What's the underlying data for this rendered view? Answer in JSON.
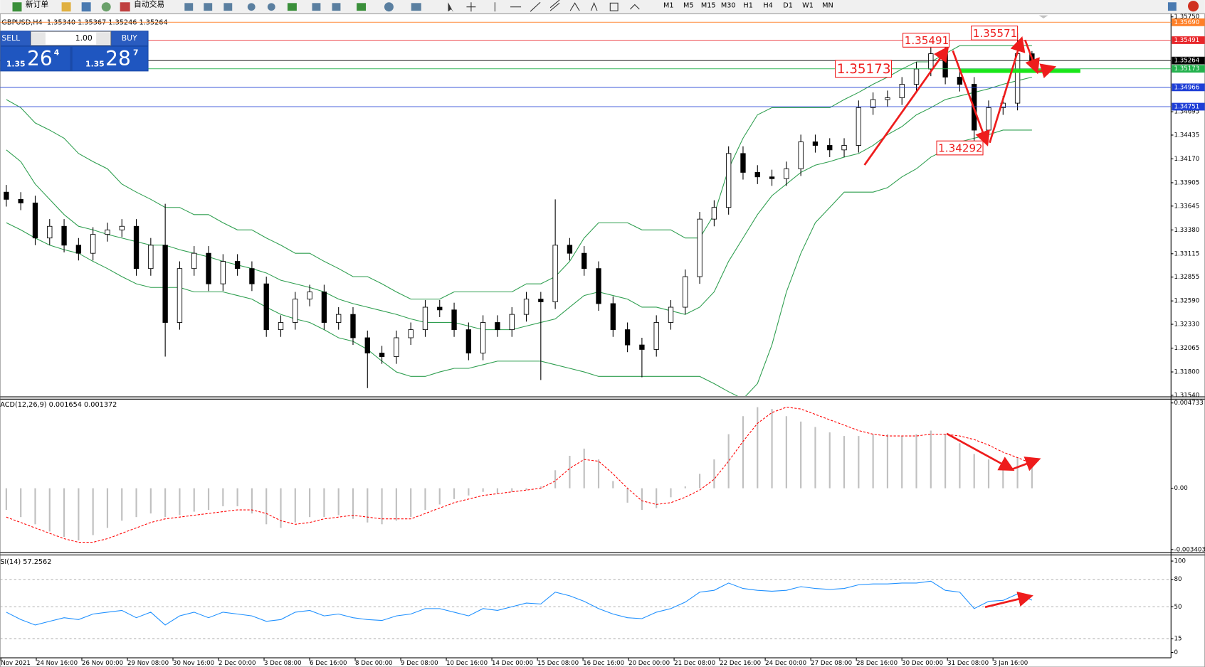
{
  "toolbar": {
    "new_order": "新订单",
    "auto_trading": "自动交易",
    "timeframes": [
      "M1",
      "M5",
      "M15",
      "M30",
      "H1",
      "H4",
      "D1",
      "W1",
      "MN"
    ]
  },
  "one_click": {
    "sell": "SELL",
    "lots": "1.00",
    "buy": "BUY",
    "bid": [
      "1.35",
      "26",
      "4"
    ],
    "ask": [
      "1.35",
      "28",
      "7"
    ]
  },
  "chart_data": [
    {
      "type": "candlestick",
      "title": "GBPUSD,H4  1.35340 1.35367 1.35246 1.35264",
      "x_labels": [
        "Nov 2021",
        "24 Nov 16:00",
        "26 Nov 00:00",
        "29 Nov 08:00",
        "30 Nov 16:00",
        "2 Dec 00:00",
        "3 Dec 08:00",
        "6 Dec 16:00",
        "8 Dec 00:00",
        "9 Dec 08:00",
        "10 Dec 16:00",
        "14 Dec 00:00",
        "15 Dec 08:00",
        "16 Dec 16:00",
        "20 Dec 00:00",
        "21 Dec 08:00",
        "22 Dec 16:00",
        "24 Dec 00:00",
        "27 Dec 08:00",
        "28 Dec 16:00",
        "30 Dec 00:00",
        "31 Dec 08:00",
        "3 Jan 16:00"
      ],
      "open": [
        1.338,
        1.3372,
        1.3368,
        1.3329,
        1.3342,
        1.3321,
        1.3312,
        1.3333,
        1.3338,
        1.3342,
        1.3295,
        1.3321,
        1.3235,
        1.3295,
        1.3312,
        1.3278,
        1.3303,
        1.3295,
        1.3278,
        1.3227,
        1.3235,
        1.3261,
        1.3269,
        1.3235,
        1.3244,
        1.3218,
        1.3201,
        1.3197,
        1.3218,
        1.3227,
        1.3252,
        1.3249,
        1.3227,
        1.3201,
        1.3235,
        1.3227,
        1.3244,
        1.3261,
        1.3258,
        1.3321,
        1.3312,
        1.3295,
        1.3256,
        1.3227,
        1.321,
        1.3205,
        1.3235,
        1.3252,
        1.3286,
        1.335,
        1.3363,
        1.3423,
        1.3402,
        1.3397,
        1.3395,
        1.3406,
        1.3436,
        1.3432,
        1.3427,
        1.3432,
        1.3474,
        1.3483,
        1.3485,
        1.35,
        1.3517,
        1.3534,
        1.3508,
        1.35,
        1.3449,
        1.3474,
        1.3479,
        1.3534
      ],
      "high": [
        1.3388,
        1.338,
        1.3376,
        1.335,
        1.335,
        1.3329,
        1.3341,
        1.3346,
        1.335,
        1.335,
        1.3329,
        1.3367,
        1.3303,
        1.332,
        1.332,
        1.3311,
        1.3311,
        1.3303,
        1.3286,
        1.3243,
        1.3269,
        1.3277,
        1.3277,
        1.3252,
        1.3252,
        1.3226,
        1.3209,
        1.3226,
        1.3235,
        1.326,
        1.326,
        1.3257,
        1.3235,
        1.3243,
        1.3243,
        1.3252,
        1.3269,
        1.3269,
        1.3372,
        1.3329,
        1.332,
        1.3303,
        1.3264,
        1.3235,
        1.3218,
        1.3243,
        1.326,
        1.3294,
        1.3358,
        1.3371,
        1.3431,
        1.3431,
        1.341,
        1.3405,
        1.3414,
        1.3444,
        1.3444,
        1.344,
        1.344,
        1.3482,
        1.3491,
        1.3493,
        1.3508,
        1.3525,
        1.3549,
        1.3542,
        1.3516,
        1.3508,
        1.3482,
        1.3487,
        1.3557,
        1.3537
      ],
      "low": [
        1.3364,
        1.336,
        1.3321,
        1.3321,
        1.3313,
        1.3304,
        1.3304,
        1.3325,
        1.333,
        1.3287,
        1.3287,
        1.3197,
        1.3227,
        1.3287,
        1.327,
        1.327,
        1.3287,
        1.327,
        1.3219,
        1.3219,
        1.3227,
        1.3253,
        1.3227,
        1.3227,
        1.321,
        1.3162,
        1.3189,
        1.3189,
        1.321,
        1.3219,
        1.3241,
        1.3219,
        1.3193,
        1.3193,
        1.3219,
        1.3219,
        1.3236,
        1.3171,
        1.325,
        1.3304,
        1.3287,
        1.3248,
        1.3219,
        1.3202,
        1.3174,
        1.3197,
        1.3227,
        1.3244,
        1.3278,
        1.3342,
        1.3355,
        1.3394,
        1.3389,
        1.3387,
        1.3387,
        1.3398,
        1.3424,
        1.3419,
        1.3419,
        1.3424,
        1.3466,
        1.3475,
        1.3477,
        1.3492,
        1.3509,
        1.35,
        1.3492,
        1.3429,
        1.3441,
        1.3466,
        1.3471,
        1.3525
      ],
      "close": [
        1.3372,
        1.3368,
        1.3329,
        1.3342,
        1.3321,
        1.3312,
        1.3333,
        1.3338,
        1.3342,
        1.3295,
        1.3321,
        1.3235,
        1.3295,
        1.3312,
        1.3278,
        1.3303,
        1.3295,
        1.3278,
        1.3227,
        1.3235,
        1.3261,
        1.3269,
        1.3235,
        1.3244,
        1.3218,
        1.3201,
        1.3197,
        1.3218,
        1.3227,
        1.3252,
        1.3249,
        1.3227,
        1.3201,
        1.3235,
        1.3227,
        1.3244,
        1.3261,
        1.3258,
        1.3321,
        1.3312,
        1.3295,
        1.3256,
        1.3227,
        1.321,
        1.3205,
        1.3235,
        1.3252,
        1.3286,
        1.335,
        1.3363,
        1.3423,
        1.3402,
        1.3397,
        1.3395,
        1.3406,
        1.3436,
        1.3432,
        1.3427,
        1.3432,
        1.3474,
        1.3483,
        1.3485,
        1.35,
        1.3517,
        1.3534,
        1.3508,
        1.35,
        1.3449,
        1.3474,
        1.3479,
        1.3534,
        1.3526
      ],
      "upper": [
        1.3483,
        1.3474,
        1.3457,
        1.3449,
        1.344,
        1.3423,
        1.3414,
        1.3406,
        1.3389,
        1.338,
        1.3372,
        1.3363,
        1.3363,
        1.3355,
        1.3355,
        1.3346,
        1.3338,
        1.3338,
        1.3329,
        1.3321,
        1.3312,
        1.3312,
        1.3303,
        1.3295,
        1.3286,
        1.3286,
        1.3278,
        1.3269,
        1.3261,
        1.3261,
        1.3261,
        1.3269,
        1.3269,
        1.3269,
        1.3269,
        1.3269,
        1.3278,
        1.3278,
        1.3286,
        1.3303,
        1.3329,
        1.3346,
        1.3346,
        1.3346,
        1.3338,
        1.3338,
        1.3338,
        1.3329,
        1.3329,
        1.3355,
        1.3406,
        1.344,
        1.3466,
        1.3474,
        1.3474,
        1.3474,
        1.3474,
        1.3474,
        1.3483,
        1.3491,
        1.35,
        1.3508,
        1.3517,
        1.3525,
        1.3525,
        1.3534,
        1.3543,
        1.3543,
        1.3543,
        1.3543,
        1.3543,
        1.3543
      ],
      "middle": [
        1.3427,
        1.3414,
        1.3389,
        1.3372,
        1.3355,
        1.3342,
        1.3338,
        1.3333,
        1.3329,
        1.3325,
        1.3321,
        1.3321,
        1.3316,
        1.3312,
        1.3308,
        1.3303,
        1.3299,
        1.3295,
        1.329,
        1.3282,
        1.3278,
        1.3274,
        1.3269,
        1.3261,
        1.3256,
        1.3252,
        1.3248,
        1.3244,
        1.3239,
        1.3235,
        1.3235,
        1.3235,
        1.3231,
        1.3227,
        1.3227,
        1.3227,
        1.3231,
        1.3235,
        1.3239,
        1.3252,
        1.3265,
        1.3269,
        1.3265,
        1.3261,
        1.3252,
        1.3252,
        1.3248,
        1.3244,
        1.3252,
        1.3269,
        1.3303,
        1.3329,
        1.3355,
        1.3376,
        1.3389,
        1.3402,
        1.341,
        1.3414,
        1.3419,
        1.3423,
        1.3432,
        1.3444,
        1.3453,
        1.3466,
        1.3474,
        1.3483,
        1.3487,
        1.3491,
        1.3495,
        1.35,
        1.3504,
        1.3508
      ],
      "lower": [
        1.3346,
        1.3338,
        1.3329,
        1.3321,
        1.3316,
        1.3312,
        1.3303,
        1.3295,
        1.3286,
        1.3278,
        1.3274,
        1.3274,
        1.3274,
        1.3269,
        1.3269,
        1.3269,
        1.3265,
        1.3261,
        1.3252,
        1.3244,
        1.3239,
        1.3235,
        1.3227,
        1.3218,
        1.3214,
        1.3205,
        1.3192,
        1.318,
        1.3175,
        1.3175,
        1.318,
        1.3184,
        1.3184,
        1.3188,
        1.3192,
        1.3192,
        1.3192,
        1.3192,
        1.3188,
        1.3184,
        1.318,
        1.3175,
        1.3175,
        1.3175,
        1.3175,
        1.3175,
        1.3175,
        1.3175,
        1.3175,
        1.3167,
        1.3158,
        1.315,
        1.3167,
        1.321,
        1.3269,
        1.3312,
        1.3346,
        1.3363,
        1.338,
        1.338,
        1.338,
        1.3385,
        1.3397,
        1.3406,
        1.3419,
        1.3427,
        1.3436,
        1.344,
        1.3444,
        1.3449,
        1.3449,
        1.3449
      ],
      "band_color": "#2e9e4f",
      "up_color": "#ffffff",
      "down_color": "#000000",
      "ylim": [
        1.3154,
        1.3575
      ],
      "yticks": [
        {
          "value": 1.3575,
          "label": "1.35750"
        },
        1.34695,
        1.34435,
        {
          "value": 1.3417,
          "label": "1.34170"
        },
        1.33905,
        1.33645,
        {
          "value": 1.3338,
          "label": "1.33380"
        },
        1.33115,
        1.32855,
        {
          "value": 1.3259,
          "label": "1.32590"
        },
        {
          "value": 1.3233,
          "label": "1.32330"
        },
        1.32065,
        {
          "value": 1.318,
          "label": "1.31800"
        },
        {
          "value": 1.3154,
          "label": "1.31540"
        }
      ],
      "levels": [
        {
          "value": 1.3569,
          "label": "1.35690",
          "color": "#ff7f27"
        },
        {
          "value": 1.35491,
          "label": "1.35491",
          "color": "#e8262a"
        },
        {
          "value": 1.35264,
          "label": "1.35264",
          "color": "#000000"
        },
        {
          "value": 1.35173,
          "label": "1.35173",
          "color": "#22b14c"
        },
        {
          "value": 1.34966,
          "label": "1.34966",
          "color": "#1f3fd6"
        },
        {
          "value": 1.34751,
          "label": "1.34751",
          "color": "#1f3fd6"
        }
      ],
      "annotations": [
        {
          "value": 1.35491,
          "label": "1.35491"
        },
        {
          "value": 1.35571,
          "label": "1.35571"
        },
        {
          "value": 1.35173,
          "label": "1.35173"
        },
        {
          "value": 1.34292,
          "label": "1.34292"
        }
      ],
      "annotation_color": "#ee1c1c"
    },
    {
      "type": "macd",
      "title": "ACD(12,26,9) 0.001654 0.001372",
      "histogram": [
        -0.0012,
        -0.0016,
        -0.002,
        -0.0024,
        -0.0027,
        -0.0029,
        -0.0026,
        -0.0022,
        -0.0018,
        -0.0016,
        -0.0014,
        -0.0016,
        -0.0015,
        -0.0013,
        -0.0012,
        -0.001,
        -0.001,
        -0.0014,
        -0.002,
        -0.0022,
        -0.0019,
        -0.0016,
        -0.0016,
        -0.0015,
        -0.0017,
        -0.0019,
        -0.002,
        -0.0018,
        -0.0016,
        -0.0012,
        -0.0009,
        -0.0006,
        -0.0004,
        -0.0002,
        -0.0003,
        -0.0002,
        -0.0001,
        0.0001,
        0.001,
        0.0018,
        0.0022,
        0.0016,
        0.0004,
        -0.0008,
        -0.0012,
        -0.0011,
        -0.0005,
        0.0001,
        0.0008,
        0.0016,
        0.003,
        0.004,
        0.0045,
        0.0044,
        0.004,
        0.0037,
        0.0034,
        0.0031,
        0.0029,
        0.0029,
        0.003,
        0.003,
        0.0029,
        0.003,
        0.0032,
        0.003,
        0.0025,
        0.0019,
        0.0016,
        0.0015,
        0.0017,
        0.001654
      ],
      "signal": [
        -0.0016,
        -0.0019,
        -0.0022,
        -0.0025,
        -0.0028,
        -0.003,
        -0.003,
        -0.0028,
        -0.0025,
        -0.0022,
        -0.0019,
        -0.0017,
        -0.0016,
        -0.0015,
        -0.0014,
        -0.0013,
        -0.0012,
        -0.0012,
        -0.0014,
        -0.0018,
        -0.002,
        -0.0019,
        -0.0017,
        -0.0016,
        -0.0015,
        -0.0016,
        -0.0017,
        -0.0017,
        -0.0017,
        -0.0014,
        -0.0011,
        -0.0008,
        -0.0006,
        -0.0004,
        -0.0003,
        -0.0002,
        -0.0001,
        0.0,
        0.0004,
        0.0011,
        0.0016,
        0.0015,
        0.0008,
        0.0,
        -0.0007,
        -0.0009,
        -0.0008,
        -0.0005,
        -0.0001,
        0.0005,
        0.0015,
        0.0026,
        0.0036,
        0.0042,
        0.0045,
        0.0044,
        0.0041,
        0.0038,
        0.0035,
        0.0032,
        0.003,
        0.0029,
        0.0029,
        0.0029,
        0.003,
        0.003,
        0.0029,
        0.0027,
        0.0024,
        0.002,
        0.0017,
        0.001372
      ],
      "histogram_color": "#c0c0c0",
      "signal_color": "#ff0000",
      "ylim": [
        -0.003403,
        0.004733
      ],
      "yticks": [
        0.004733,
        {
          "value": 0,
          "label": "0.00"
        },
        -0.003403
      ]
    },
    {
      "type": "line",
      "title": "SI(14) 57.2562",
      "values": [
        44,
        36,
        30,
        34,
        38,
        36,
        42,
        44,
        46,
        38,
        44,
        30,
        40,
        44,
        38,
        44,
        42,
        40,
        34,
        36,
        44,
        46,
        40,
        42,
        38,
        36,
        35,
        40,
        42,
        48,
        48,
        44,
        40,
        48,
        46,
        50,
        54,
        53,
        66,
        62,
        56,
        48,
        42,
        38,
        37,
        44,
        48,
        55,
        66,
        68,
        76,
        70,
        68,
        67,
        68,
        72,
        70,
        69,
        70,
        74,
        75,
        75,
        76,
        76,
        78,
        68,
        66,
        48,
        56,
        57,
        64,
        57.2562
      ],
      "color": "#1e90ff",
      "ylim": [
        0,
        100
      ],
      "yticks": [
        100,
        80,
        50,
        15,
        0
      ]
    }
  ]
}
